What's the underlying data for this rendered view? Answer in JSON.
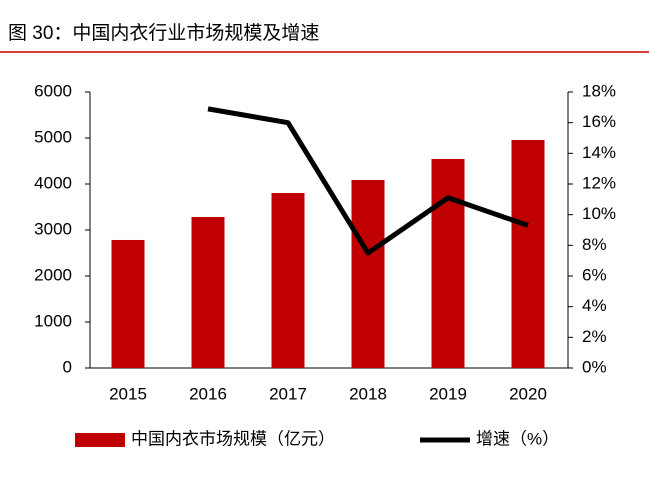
{
  "chart_data": {
    "type": "bar",
    "title": "图 30：中国内衣行业市场规模及增速",
    "categories": [
      "2015",
      "2016",
      "2017",
      "2018",
      "2019",
      "2020"
    ],
    "series": [
      {
        "name": "中国内衣市场规模（亿元）",
        "type": "bar",
        "color": "#c00000",
        "values": [
          2783,
          3283,
          3804,
          4087,
          4543,
          4957
        ]
      },
      {
        "name": "增速（%）",
        "type": "line",
        "axis": "y2",
        "color": "#000000",
        "values": [
          null,
          16.9,
          16.0,
          7.5,
          11.1,
          9.3
        ]
      }
    ],
    "ylim": [
      0,
      6000
    ],
    "yticks": [
      0,
      1000,
      2000,
      3000,
      4000,
      5000,
      6000
    ],
    "y2lim": [
      0,
      18
    ],
    "y2ticks": [
      {
        "value": 0,
        "label": "0%"
      },
      {
        "value": 2,
        "label": "2%"
      },
      {
        "value": 4,
        "label": "4%"
      },
      {
        "value": 6,
        "label": "6%"
      },
      {
        "value": 8,
        "label": "8%"
      },
      {
        "value": 10,
        "label": "10%"
      },
      {
        "value": 12,
        "label": "12%"
      },
      {
        "value": 14,
        "label": "14%"
      },
      {
        "value": 16,
        "label": "16%"
      },
      {
        "value": 18,
        "label": "18%"
      }
    ],
    "legend": "bottom"
  }
}
